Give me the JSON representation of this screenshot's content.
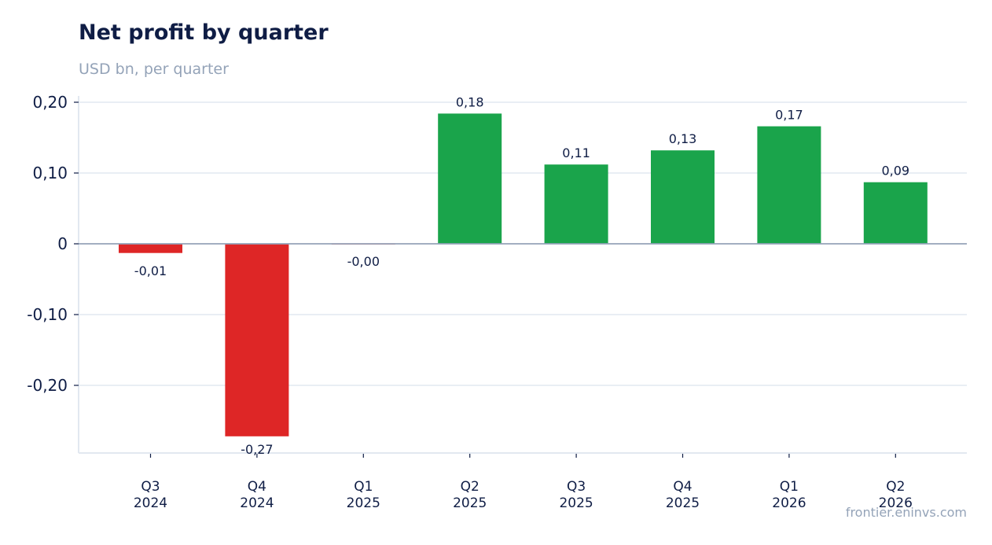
{
  "title": "Net profit by quarter",
  "subtitle": "USD bn, per quarter",
  "source": "frontier.eninvs.com",
  "colors": {
    "positive": "#1aa44b",
    "negative": "#de2626",
    "grid": "#e2e8f0",
    "zero_line": "#94a3b8",
    "title": "#0f1d45",
    "muted": "#94a3b8"
  },
  "chart_data": {
    "type": "bar",
    "title": "Net profit by quarter",
    "subtitle": "USD bn, per quarter",
    "categories": [
      [
        "Q3",
        "2024"
      ],
      [
        "Q4",
        "2024"
      ],
      [
        "Q1",
        "2025"
      ],
      [
        "Q2",
        "2025"
      ],
      [
        "Q3",
        "2025"
      ],
      [
        "Q4",
        "2025"
      ],
      [
        "Q1",
        "2026"
      ],
      [
        "Q2",
        "2026"
      ]
    ],
    "values": [
      -0.013,
      -0.272,
      -0.001,
      0.184,
      0.112,
      0.132,
      0.166,
      0.087
    ],
    "data_labels": [
      "-0,01",
      "-0,27",
      "-0,00",
      "0,18",
      "0,11",
      "0,13",
      "0,17",
      "0,09"
    ],
    "yticks": [
      0.2,
      0.1,
      0,
      -0.1,
      -0.2
    ],
    "ytick_labels": [
      "0,20",
      "0,10",
      "0",
      "-0,10",
      "-0,20"
    ],
    "ylim": [
      -0.296,
      0.2
    ],
    "grid": true,
    "legend": false
  }
}
